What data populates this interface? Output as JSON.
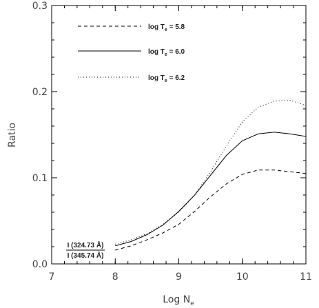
{
  "chart_data": {
    "type": "line",
    "xlabel": "Log N",
    "xlabel_sub": "e",
    "ylabel": "Ratio",
    "xlim": [
      7,
      11
    ],
    "ylim": [
      0,
      0.3
    ],
    "x_ticks": [
      7,
      8,
      9,
      10,
      11
    ],
    "x_tick_labels": [
      "7",
      "8",
      "9",
      "10",
      "11"
    ],
    "y_ticks": [
      0,
      0.1,
      0.2,
      0.3
    ],
    "y_tick_labels": [
      "0.0",
      "0.1",
      "0.2",
      "0.3"
    ],
    "grid": false,
    "legend_position": "top-left",
    "annotation": {
      "numerator": "I (324.73 Å)",
      "denominator": "I (345.74 Å)"
    },
    "series": [
      {
        "name": "log T",
        "name_sub": "e",
        "name_suffix": " = 5.8",
        "style": "dashed",
        "x": [
          8.0,
          8.25,
          8.5,
          8.75,
          9.0,
          9.25,
          9.5,
          9.75,
          10.0,
          10.25,
          10.5,
          10.75,
          11.0
        ],
        "values": [
          0.016,
          0.021,
          0.028,
          0.036,
          0.046,
          0.061,
          0.078,
          0.093,
          0.104,
          0.109,
          0.109,
          0.107,
          0.105
        ]
      },
      {
        "name": "log T",
        "name_sub": "e",
        "name_suffix": " = 6.0",
        "style": "solid",
        "x": [
          8.0,
          8.25,
          8.5,
          8.75,
          9.0,
          9.25,
          9.5,
          9.75,
          10.0,
          10.25,
          10.5,
          10.75,
          11.0
        ],
        "values": [
          0.021,
          0.026,
          0.034,
          0.045,
          0.061,
          0.08,
          0.103,
          0.126,
          0.143,
          0.151,
          0.153,
          0.151,
          0.148
        ]
      },
      {
        "name": "log T",
        "name_sub": "e",
        "name_suffix": " = 6.2",
        "style": "dotted",
        "x": [
          8.0,
          8.25,
          8.5,
          8.75,
          9.0,
          9.25,
          9.5,
          9.75,
          10.0,
          10.25,
          10.5,
          10.75,
          11.0
        ],
        "values": [
          0.023,
          0.028,
          0.035,
          0.046,
          0.06,
          0.08,
          0.107,
          0.137,
          0.165,
          0.182,
          0.189,
          0.19,
          0.184
        ]
      }
    ]
  }
}
